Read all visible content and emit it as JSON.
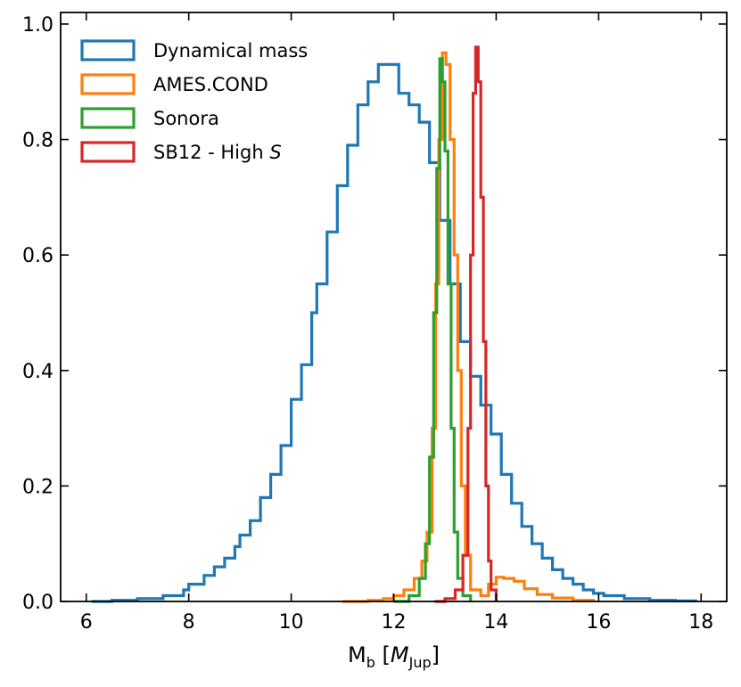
{
  "chart_data": {
    "type": "line",
    "title": "",
    "xlabel": {
      "main": "M",
      "sub": "b",
      "unit_open": " [",
      "unit": "M",
      "unit_sub": "Jup",
      "unit_close": "]"
    },
    "ylabel": "",
    "xlim": [
      5.5,
      18.5
    ],
    "ylim": [
      0.0,
      1.02
    ],
    "x_ticks": [
      6,
      8,
      10,
      12,
      14,
      16,
      18
    ],
    "x_tick_labels": [
      "6",
      "8",
      "10",
      "12",
      "14",
      "16",
      "18"
    ],
    "y_ticks": [
      0.0,
      0.2,
      0.4,
      0.6,
      0.8,
      1.0
    ],
    "y_tick_labels": [
      "0.0",
      "0.2",
      "0.4",
      "0.6",
      "0.8",
      "1.0"
    ],
    "grid": false,
    "legend_position": "top-left",
    "series": [
      {
        "name": "Dynamical mass",
        "color": "#1f77b4",
        "points": [
          [
            6.1,
            0.0
          ],
          [
            6.5,
            0.002
          ],
          [
            7.0,
            0.005
          ],
          [
            7.5,
            0.01
          ],
          [
            7.9,
            0.02
          ],
          [
            8.0,
            0.03
          ],
          [
            8.3,
            0.045
          ],
          [
            8.5,
            0.06
          ],
          [
            8.7,
            0.075
          ],
          [
            8.9,
            0.095
          ],
          [
            9.0,
            0.115
          ],
          [
            9.2,
            0.14
          ],
          [
            9.4,
            0.18
          ],
          [
            9.6,
            0.22
          ],
          [
            9.8,
            0.27
          ],
          [
            10.0,
            0.35
          ],
          [
            10.2,
            0.41
          ],
          [
            10.4,
            0.5
          ],
          [
            10.5,
            0.55
          ],
          [
            10.7,
            0.64
          ],
          [
            10.9,
            0.72
          ],
          [
            11.1,
            0.79
          ],
          [
            11.3,
            0.86
          ],
          [
            11.5,
            0.9
          ],
          [
            11.7,
            0.93
          ],
          [
            11.9,
            0.93
          ],
          [
            12.1,
            0.88
          ],
          [
            12.3,
            0.86
          ],
          [
            12.5,
            0.83
          ],
          [
            12.7,
            0.76
          ],
          [
            12.9,
            0.66
          ],
          [
            13.1,
            0.55
          ],
          [
            13.3,
            0.45
          ],
          [
            13.5,
            0.39
          ],
          [
            13.7,
            0.34
          ],
          [
            13.9,
            0.29
          ],
          [
            14.1,
            0.22
          ],
          [
            14.3,
            0.17
          ],
          [
            14.5,
            0.13
          ],
          [
            14.7,
            0.1
          ],
          [
            14.9,
            0.075
          ],
          [
            15.1,
            0.055
          ],
          [
            15.3,
            0.04
          ],
          [
            15.5,
            0.03
          ],
          [
            15.7,
            0.02
          ],
          [
            15.9,
            0.014
          ],
          [
            16.1,
            0.01
          ],
          [
            16.5,
            0.005
          ],
          [
            17.0,
            0.002
          ],
          [
            17.5,
            0.001
          ],
          [
            17.9,
            0.0
          ]
        ]
      },
      {
        "name": "AMES.COND",
        "color": "#ff7f0e",
        "points": [
          [
            11.0,
            0.0
          ],
          [
            11.5,
            0.002
          ],
          [
            11.8,
            0.005
          ],
          [
            12.0,
            0.01
          ],
          [
            12.2,
            0.02
          ],
          [
            12.4,
            0.04
          ],
          [
            12.55,
            0.07
          ],
          [
            12.65,
            0.12
          ],
          [
            12.75,
            0.3
          ],
          [
            12.82,
            0.55
          ],
          [
            12.88,
            0.8
          ],
          [
            12.95,
            0.95
          ],
          [
            13.02,
            0.93
          ],
          [
            13.1,
            0.8
          ],
          [
            13.18,
            0.6
          ],
          [
            13.25,
            0.4
          ],
          [
            13.32,
            0.2
          ],
          [
            13.4,
            0.08
          ],
          [
            13.5,
            0.02
          ],
          [
            13.7,
            0.01
          ],
          [
            13.85,
            0.03
          ],
          [
            14.0,
            0.042
          ],
          [
            14.15,
            0.04
          ],
          [
            14.35,
            0.035
          ],
          [
            14.55,
            0.022
          ],
          [
            14.8,
            0.012
          ],
          [
            15.1,
            0.006
          ],
          [
            15.5,
            0.002
          ],
          [
            15.9,
            0.0
          ]
        ]
      },
      {
        "name": "Sonora",
        "color": "#2ca02c",
        "points": [
          [
            12.0,
            0.0
          ],
          [
            12.3,
            0.01
          ],
          [
            12.5,
            0.04
          ],
          [
            12.62,
            0.1
          ],
          [
            12.7,
            0.25
          ],
          [
            12.78,
            0.5
          ],
          [
            12.84,
            0.75
          ],
          [
            12.9,
            0.94
          ],
          [
            12.95,
            0.9
          ],
          [
            13.0,
            0.78
          ],
          [
            13.06,
            0.55
          ],
          [
            13.12,
            0.3
          ],
          [
            13.18,
            0.12
          ],
          [
            13.25,
            0.04
          ],
          [
            13.35,
            0.01
          ],
          [
            13.5,
            0.0
          ]
        ]
      },
      {
        "name": "SB12 - High S",
        "name_main": "SB12 - High ",
        "name_italic": "S",
        "color": "#d62728",
        "points": [
          [
            12.8,
            0.0
          ],
          [
            13.0,
            0.005
          ],
          [
            13.2,
            0.02
          ],
          [
            13.35,
            0.08
          ],
          [
            13.45,
            0.3
          ],
          [
            13.5,
            0.6
          ],
          [
            13.55,
            0.88
          ],
          [
            13.6,
            0.96
          ],
          [
            13.65,
            0.9
          ],
          [
            13.7,
            0.7
          ],
          [
            13.75,
            0.45
          ],
          [
            13.8,
            0.2
          ],
          [
            13.85,
            0.07
          ],
          [
            13.9,
            0.02
          ],
          [
            14.0,
            0.0
          ]
        ]
      }
    ]
  }
}
